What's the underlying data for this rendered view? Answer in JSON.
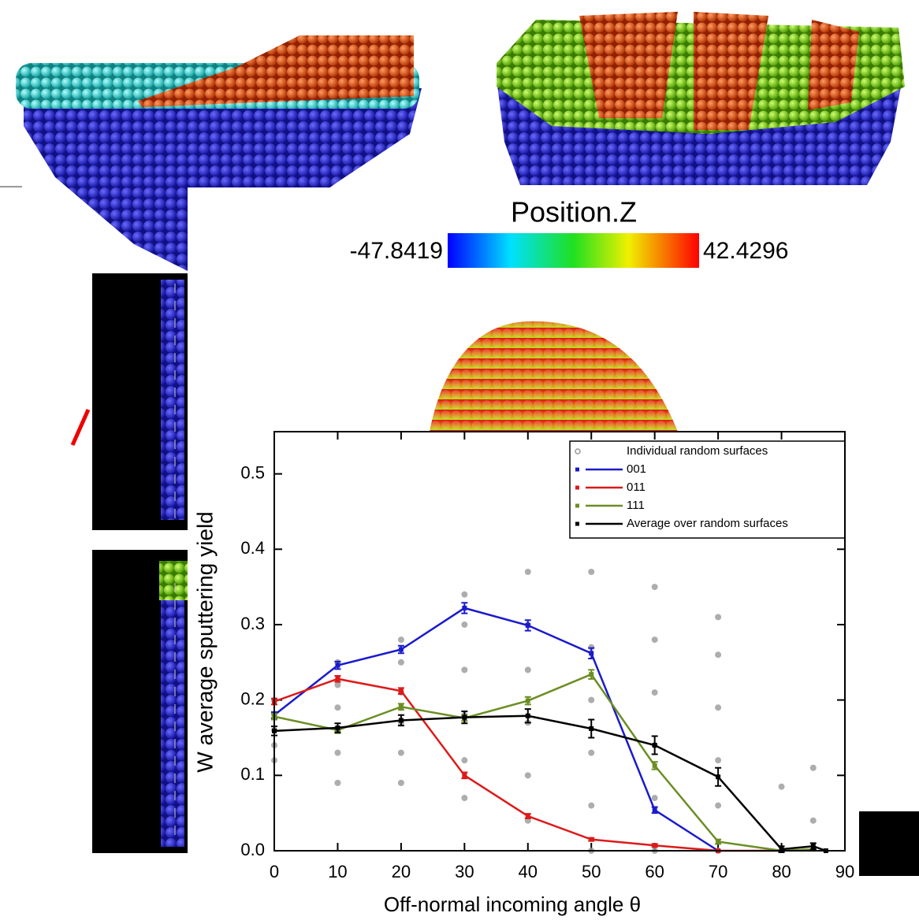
{
  "colorbar": {
    "label": "Position.Z",
    "min": -47.8419,
    "max": 42.4296
  },
  "chart_data": {
    "type": "line",
    "xlabel": "Off-normal incoming angle θ",
    "ylabel": "W average sputtering yield",
    "xlim": [
      0,
      90
    ],
    "ylim": [
      0,
      0.556
    ],
    "xticks": [
      0,
      10,
      20,
      30,
      40,
      50,
      60,
      70,
      80,
      90
    ],
    "yticks": [
      {
        "value": 0,
        "label": "0.0"
      },
      0.1,
      0.2,
      0.3,
      0.4,
      0.5
    ],
    "legend": "upper right",
    "series": [
      {
        "name": "Individual random surfaces",
        "color": "#999999",
        "style": "points",
        "x": [
          0,
          0,
          0,
          0,
          0,
          10,
          10,
          10,
          10,
          10,
          10,
          20,
          20,
          20,
          20,
          20,
          20,
          30,
          30,
          30,
          30,
          30,
          30,
          40,
          40,
          40,
          40,
          40,
          40,
          50,
          50,
          50,
          50,
          50,
          50,
          60,
          60,
          60,
          60,
          60,
          60,
          70,
          70,
          70,
          70,
          70,
          70,
          80,
          85,
          85
        ],
        "values": [
          0.12,
          0.14,
          0.16,
          0.18,
          0.2,
          0.09,
          0.13,
          0.16,
          0.19,
          0.22,
          0.25,
          0.09,
          0.13,
          0.17,
          0.21,
          0.25,
          0.28,
          0.07,
          0.12,
          0.18,
          0.24,
          0.3,
          0.34,
          0.04,
          0.1,
          0.17,
          0.24,
          0.3,
          0.37,
          0,
          0.06,
          0.13,
          0.2,
          0.27,
          0.37,
          0,
          0.07,
          0.14,
          0.21,
          0.28,
          0.35,
          0,
          0.06,
          0.12,
          0.19,
          0.26,
          0.31,
          0.085,
          0.04,
          0.11
        ]
      },
      {
        "name": "001",
        "color": "#1a1acc",
        "style": "line",
        "x": [
          0,
          10,
          20,
          30,
          40,
          50,
          60,
          70
        ],
        "values": [
          0.18,
          0.246,
          0.267,
          0.322,
          0.299,
          0.262,
          0.054,
          0
        ],
        "errors": [
          0.004,
          0.005,
          0.005,
          0.007,
          0.007,
          0.007,
          0.004,
          0
        ]
      },
      {
        "name": "011",
        "color": "#dd1a1a",
        "style": "line",
        "x": [
          0,
          10,
          20,
          30,
          40,
          50,
          60,
          70,
          80
        ],
        "values": [
          0.198,
          0.228,
          0.212,
          0.1,
          0.046,
          0.015,
          0.007,
          0,
          0
        ],
        "errors": [
          0.004,
          0.004,
          0.004,
          0.004,
          0.003,
          0.002,
          0.002,
          0,
          0
        ]
      },
      {
        "name": "111",
        "color": "#6b8e23",
        "style": "line",
        "x": [
          0,
          10,
          20,
          30,
          40,
          50,
          60,
          70,
          80,
          85
        ],
        "values": [
          0.178,
          0.16,
          0.191,
          0.176,
          0.199,
          0.234,
          0.113,
          0.012,
          0,
          0.002
        ],
        "errors": [
          0.004,
          0.004,
          0.004,
          0.004,
          0.005,
          0.006,
          0.005,
          0.003,
          0,
          0
        ]
      },
      {
        "name": "Average over random surfaces",
        "color": "#000000",
        "style": "line",
        "x": [
          0,
          10,
          20,
          30,
          40,
          50,
          60,
          70,
          80,
          85,
          87
        ],
        "values": [
          0.159,
          0.163,
          0.173,
          0.177,
          0.179,
          0.162,
          0.14,
          0.098,
          0.002,
          0.006,
          0
        ],
        "errors": [
          0.006,
          0.006,
          0.007,
          0.008,
          0.009,
          0.012,
          0.012,
          0.012,
          0.004,
          0.004,
          0
        ]
      }
    ]
  }
}
